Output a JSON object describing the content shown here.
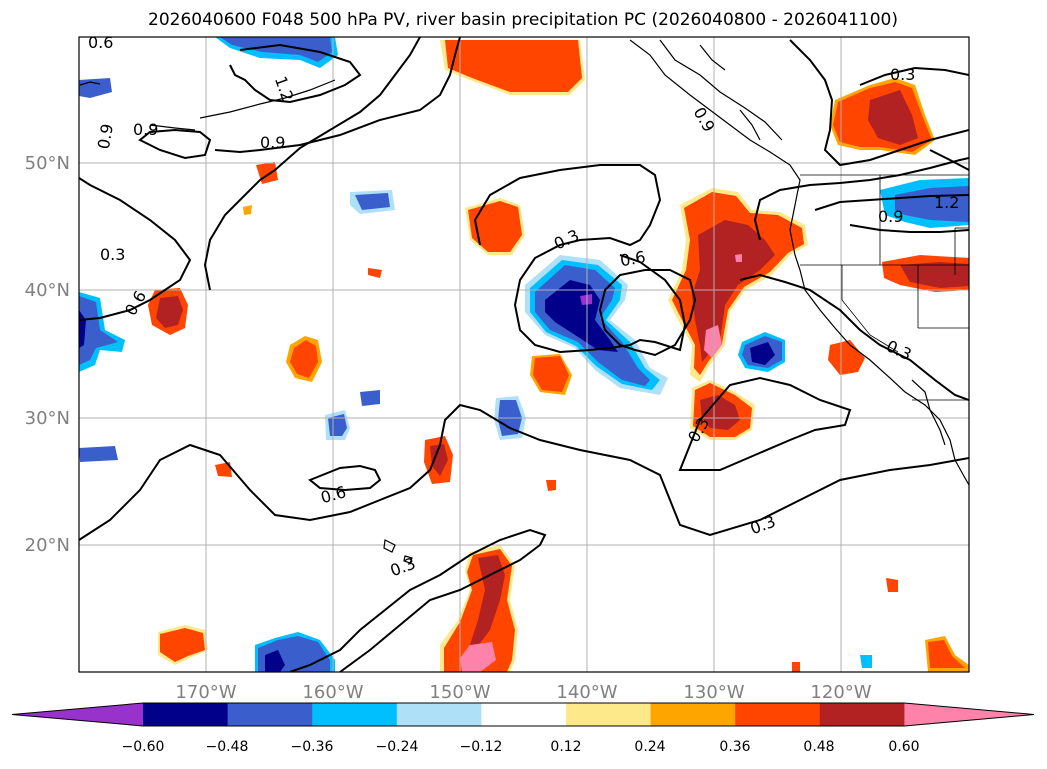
{
  "title": "2026040600 F048 500 hPa PV, river basin precipitation PC (2026040800 - 2026041100)",
  "latitude_labels": [
    "50°N",
    "40°N",
    "30°N",
    "20°N"
  ],
  "longitude_labels": [
    "170°W",
    "160°W",
    "150°W",
    "140°W",
    "130°W",
    "120°W"
  ],
  "contour_labels": [
    "0.6",
    "1.2",
    "0.9",
    "0.9",
    "0.9",
    "0.3",
    "0.6",
    "0.3",
    "0.6",
    "0.6",
    "0.3",
    "0.3",
    "0.3",
    "0.9",
    "0.9",
    "1.2",
    "0.3",
    "0.3"
  ],
  "colorbar": {
    "tick_labels": [
      "−0.60",
      "−0.48",
      "−0.36",
      "−0.24",
      "−0.12",
      "0.12",
      "0.24",
      "0.36",
      "0.48",
      "0.60"
    ],
    "colors": [
      "#9932cc",
      "#00008b",
      "#3a5fcd",
      "#00bfff",
      "#aee0f8",
      "#ffffff",
      "#fde98a",
      "#ffa500",
      "#ff4500",
      "#b22222",
      "#ff82ab"
    ]
  },
  "colors": {
    "contour": "#000000",
    "grid": "#b0b0b0",
    "coast": "#000000",
    "axis_label": "#808080"
  }
}
